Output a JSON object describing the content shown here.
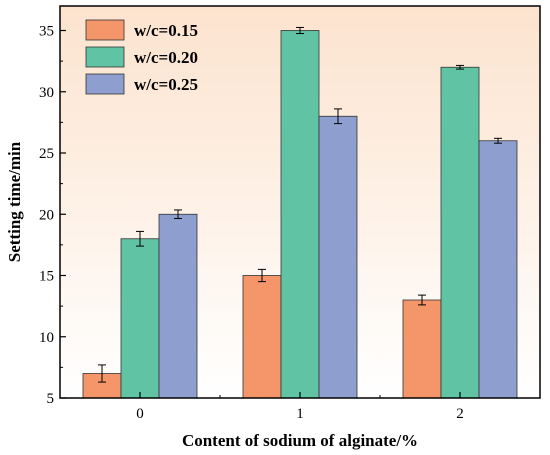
{
  "chart_data": {
    "type": "bar",
    "title": "",
    "xlabel": "Content of sodium of alginate/%",
    "ylabel": "Setting time/min",
    "categories": [
      "0",
      "1",
      "2"
    ],
    "ylim": [
      5,
      37
    ],
    "yticks": [
      5,
      10,
      15,
      20,
      25,
      30,
      35
    ],
    "legend_position": "top-left",
    "background": "gradient from light orange at top to white at bottom",
    "grid": false,
    "series": [
      {
        "name": "w/c=0.15",
        "color": "#F4956A",
        "values": [
          7,
          15,
          13
        ],
        "errors": [
          0.7,
          0.5,
          0.4
        ]
      },
      {
        "name": "w/c=0.20",
        "color": "#5FC3A4",
        "values": [
          18,
          35,
          32
        ],
        "errors": [
          0.6,
          0.25,
          0.15
        ]
      },
      {
        "name": "w/c=0.25",
        "color": "#8E9ECF",
        "values": [
          20,
          28,
          26
        ],
        "errors": [
          0.35,
          0.6,
          0.2
        ]
      }
    ]
  }
}
